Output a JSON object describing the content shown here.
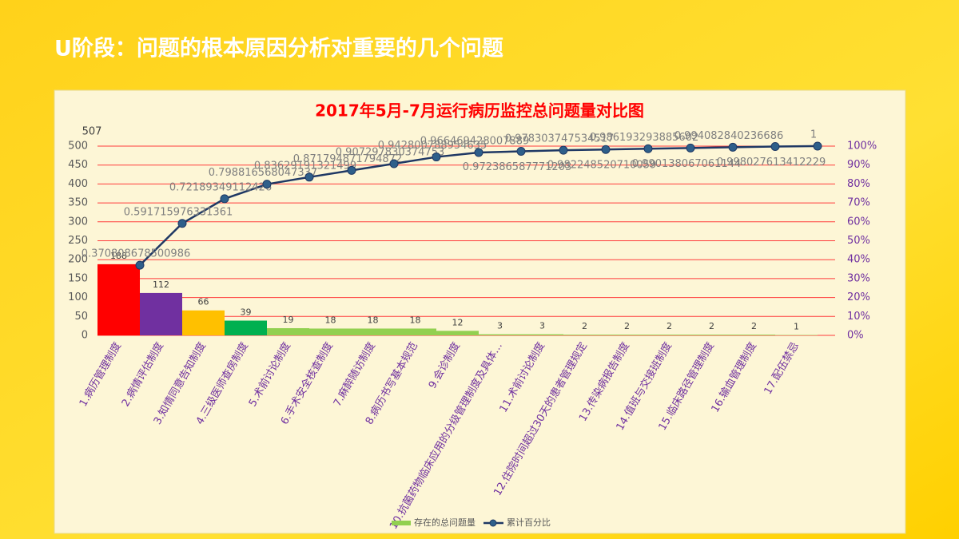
{
  "slide_title": "U阶段：问题的根本原因分析对重要的几个问题",
  "chart_data": {
    "type": "pareto",
    "title": "2017年5月-7月运行病历监控总问题量对比图",
    "annotations": [
      "507"
    ],
    "categories": [
      "1.病历管理制度",
      "2.病情评估制度",
      "3.知情同意告知制度",
      "4.三级医师查房制度",
      "5.术前讨论制度",
      "6.手术安全核查制度",
      "7.麻醉随访制度",
      "8.病历书写基本规范",
      "9.会诊制度",
      "10.抗菌药物临床应用的分级管理制度及具体…",
      "11.术前讨论制度",
      "12.住院时间超过30天的患者管理规定",
      "13.传染病报告制度",
      "14.值班与交接班制度",
      "15.临床路径管理制度",
      "16.输血管理制度",
      "17.配伍禁忌"
    ],
    "series": [
      {
        "name": "存在的总问题量",
        "color": "#92d050",
        "colors": [
          "#ff0000",
          "#7030a0",
          "#ffc000",
          "#00b050",
          "#92d050",
          "#92d050",
          "#92d050",
          "#92d050",
          "#92d050",
          "#92d050",
          "#92d050",
          "#92d050",
          "#92d050",
          "#92d050",
          "#92d050",
          "#92d050",
          "#92d050"
        ],
        "values": [
          188,
          112,
          66,
          39,
          19,
          18,
          18,
          18,
          12,
          3,
          3,
          2,
          2,
          2,
          2,
          2,
          1
        ]
      },
      {
        "name": "累计百分比",
        "color": "#1f3864",
        "axis": "y2",
        "values": [
          0.370808678500986,
          0.591715976331361,
          0.72189349112426,
          0.798816568047337,
          0.83629191321499,
          0.871794871794872,
          0.907297830374753,
          0.942800788954635,
          0.966469428007889,
          0.972386587771203,
          0.978303747534517,
          0.982248520710059,
          0.986193293885602,
          0.990138067061144,
          0.994082840236686,
          0.998027613412229,
          1
        ]
      }
    ],
    "ylim": [
      0,
      500
    ],
    "yticks": [
      0,
      50,
      100,
      150,
      200,
      250,
      300,
      350,
      400,
      450,
      500
    ],
    "y2lim": [
      0,
      1
    ],
    "y2ticks": [
      {
        "value": 0,
        "label": "0%"
      },
      {
        "value": 0.1,
        "label": "10%"
      },
      {
        "value": 0.2,
        "label": "20%"
      },
      {
        "value": 0.3,
        "label": "30%"
      },
      {
        "value": 0.4,
        "label": "40%"
      },
      {
        "value": 0.5,
        "label": "50%"
      },
      {
        "value": 0.6,
        "label": "60%"
      },
      {
        "value": 0.7,
        "label": "70%"
      },
      {
        "value": 0.8,
        "label": "80%"
      },
      {
        "value": 0.9,
        "label": "90%"
      },
      {
        "value": 1,
        "label": "100%"
      }
    ],
    "grid": true,
    "legend": "bottom"
  }
}
